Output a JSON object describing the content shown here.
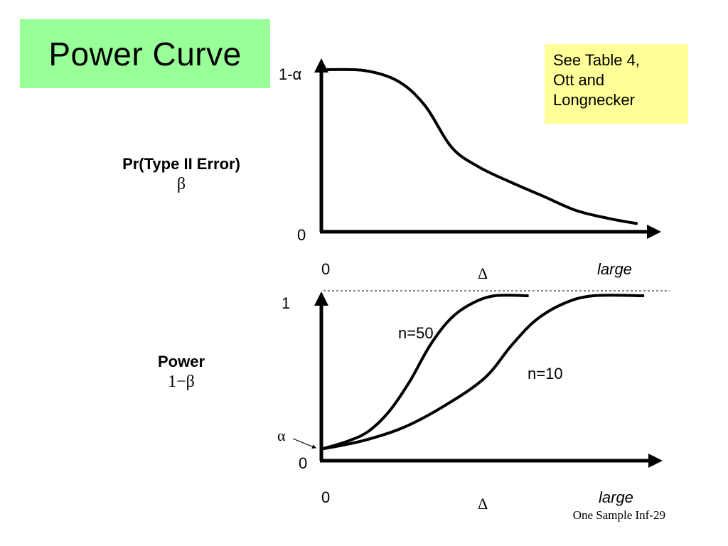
{
  "slide": {
    "title": "Power Curve",
    "note_lines": [
      "See Table 4,",
      "Ott and",
      "Longnecker"
    ],
    "footer": "One Sample Inf-29"
  },
  "chart_data": [
    {
      "type": "line",
      "ylabel": "Pr(Type II Error)",
      "ylabel_symbol": "β",
      "xlabel": "Δ",
      "x_tick_labels": [
        "0",
        "large"
      ],
      "y_tick_labels": [
        "0",
        "1-α"
      ],
      "xlim": [
        0,
        1
      ],
      "ylim": [
        0,
        1
      ],
      "series": [
        {
          "x": [
            0.0,
            0.12,
            0.22,
            0.3,
            0.38,
            0.46,
            0.55,
            0.65,
            0.75,
            0.85,
            0.93
          ],
          "y": [
            1.0,
            0.995,
            0.93,
            0.78,
            0.52,
            0.4,
            0.31,
            0.22,
            0.13,
            0.08,
            0.05
          ]
        }
      ]
    },
    {
      "type": "line",
      "ylabel": "Power",
      "ylabel_symbol": "1−β",
      "xlabel": "Δ",
      "x_tick_labels": [
        "0",
        "large"
      ],
      "y_tick_labels": [
        "0",
        "1"
      ],
      "alpha_label": "α",
      "reference_line": 1,
      "xlim": [
        0,
        1
      ],
      "ylim": [
        0,
        1
      ],
      "series": [
        {
          "name": "n=50",
          "x": [
            0.0,
            0.08,
            0.14,
            0.2,
            0.26,
            0.32,
            0.38,
            0.44,
            0.51,
            0.61
          ],
          "y": [
            0.07,
            0.12,
            0.18,
            0.3,
            0.48,
            0.7,
            0.86,
            0.95,
            1.0,
            1.0
          ]
        },
        {
          "name": "n=10",
          "x": [
            0.0,
            0.12,
            0.24,
            0.36,
            0.48,
            0.56,
            0.63,
            0.71,
            0.8,
            0.95
          ],
          "y": [
            0.07,
            0.12,
            0.2,
            0.33,
            0.5,
            0.7,
            0.85,
            0.95,
            1.0,
            1.0
          ]
        }
      ]
    }
  ]
}
